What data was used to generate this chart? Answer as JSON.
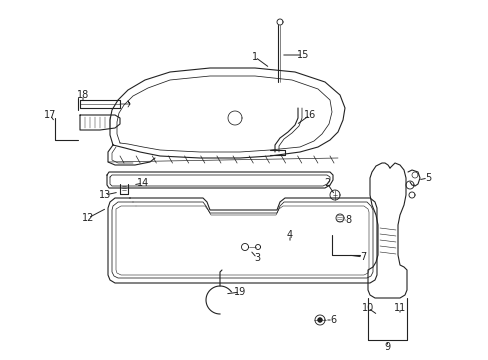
{
  "bg_color": "#ffffff",
  "line_color": "#222222",
  "figsize": [
    4.89,
    3.6
  ],
  "dpi": 100
}
